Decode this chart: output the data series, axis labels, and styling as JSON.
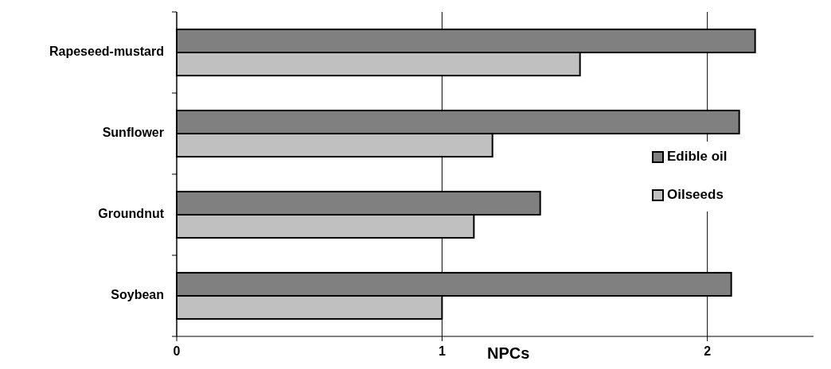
{
  "chart_data": {
    "type": "bar",
    "orientation": "horizontal",
    "xlabel": "NPCs",
    "categories": [
      "Rapeseed-mustard",
      "Sunflower",
      "Groundnut",
      "Soybean"
    ],
    "series": [
      {
        "name": "Edible oil",
        "color": "#808080",
        "values": [
          2.18,
          2.12,
          1.37,
          2.09
        ]
      },
      {
        "name": "Oilseeds",
        "color": "#c0c0c0",
        "values": [
          1.52,
          1.19,
          1.12,
          1.0
        ]
      }
    ],
    "xlim": [
      0,
      2.4
    ],
    "xticks": [
      0,
      1,
      2
    ],
    "grid": "x",
    "legend": "right"
  }
}
